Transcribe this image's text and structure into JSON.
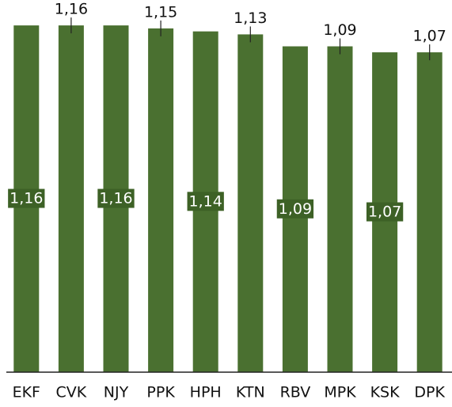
{
  "chart_data": {
    "type": "bar",
    "categories": [
      "EKF",
      "CVK",
      "NJY",
      "PPK",
      "HPH",
      "KTN",
      "RBV",
      "MPK",
      "KSK",
      "DPK"
    ],
    "values": [
      1.16,
      1.16,
      1.16,
      1.15,
      1.14,
      1.13,
      1.09,
      1.09,
      1.07,
      1.07
    ],
    "value_labels": [
      "1,16",
      "1,16",
      "1,16",
      "1,15",
      "1,14",
      "1,13",
      "1,09",
      "1,09",
      "1,07",
      "1,07"
    ],
    "color": "#4a7030",
    "ylim": [
      0,
      1.2
    ]
  }
}
